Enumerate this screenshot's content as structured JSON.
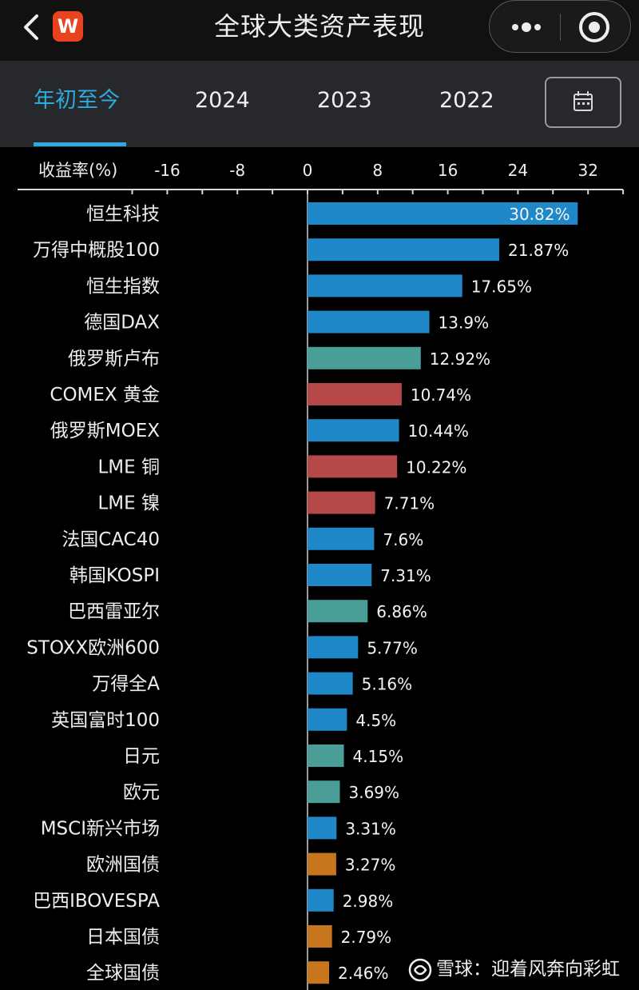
{
  "header": {
    "title": "全球大类资产表现",
    "logo_text": "W",
    "icons": {
      "back": "chevron-left-icon",
      "more": "more-dots-icon",
      "close": "target-close-icon",
      "calendar": "calendar-icon"
    }
  },
  "tabs": [
    {
      "label": "年初至今",
      "active": true
    },
    {
      "label": "2024",
      "active": false
    },
    {
      "label": "2023",
      "active": false
    },
    {
      "label": "2022",
      "active": false
    }
  ],
  "watermark": {
    "site": "雪球",
    "author": "迎着风奔向彩虹",
    "separator": "："
  },
  "colors": {
    "accent": "#2eaadc",
    "equity": "#1f88c8",
    "currency": "#4a9e98",
    "commodity": "#b64848",
    "bond": "#c7761d"
  },
  "chart_data": {
    "type": "bar",
    "orientation": "horizontal",
    "axis_title": "收益率(%)",
    "xlim": [
      -20,
      36
    ],
    "xticks": [
      -16,
      -8,
      0,
      8,
      16,
      24,
      32
    ],
    "grid": false,
    "categories": [
      "恒生科技",
      "万得中概股100",
      "恒生指数",
      "德国DAX",
      "俄罗斯卢布",
      "COMEX 黄金",
      "俄罗斯MOEX",
      "LME 铜",
      "LME 镍",
      "法国CAC40",
      "韩国KOSPI",
      "巴西雷亚尔",
      "STOXX欧洲600",
      "万得全A",
      "英国富时100",
      "日元",
      "欧元",
      "MSCI新兴市场",
      "欧洲国债",
      "巴西IBOVESPA",
      "日本国债",
      "全球国债"
    ],
    "values": [
      30.82,
      21.87,
      17.65,
      13.9,
      12.92,
      10.74,
      10.44,
      10.22,
      7.71,
      7.6,
      7.31,
      6.86,
      5.77,
      5.16,
      4.5,
      4.15,
      3.69,
      3.31,
      3.27,
      2.98,
      2.79,
      2.46
    ],
    "labels": [
      "30.82%",
      "21.87%",
      "17.65%",
      "13.9%",
      "12.92%",
      "10.74%",
      "10.44%",
      "10.22%",
      "7.71%",
      "7.6%",
      "7.31%",
      "6.86%",
      "5.77%",
      "5.16%",
      "4.5%",
      "4.15%",
      "3.69%",
      "3.31%",
      "3.27%",
      "2.98%",
      "2.79%",
      "2.46%"
    ],
    "asset_class": [
      "equity",
      "equity",
      "equity",
      "equity",
      "currency",
      "commodity",
      "equity",
      "commodity",
      "commodity",
      "equity",
      "equity",
      "currency",
      "equity",
      "equity",
      "equity",
      "currency",
      "currency",
      "equity",
      "bond",
      "equity",
      "bond",
      "bond"
    ]
  }
}
